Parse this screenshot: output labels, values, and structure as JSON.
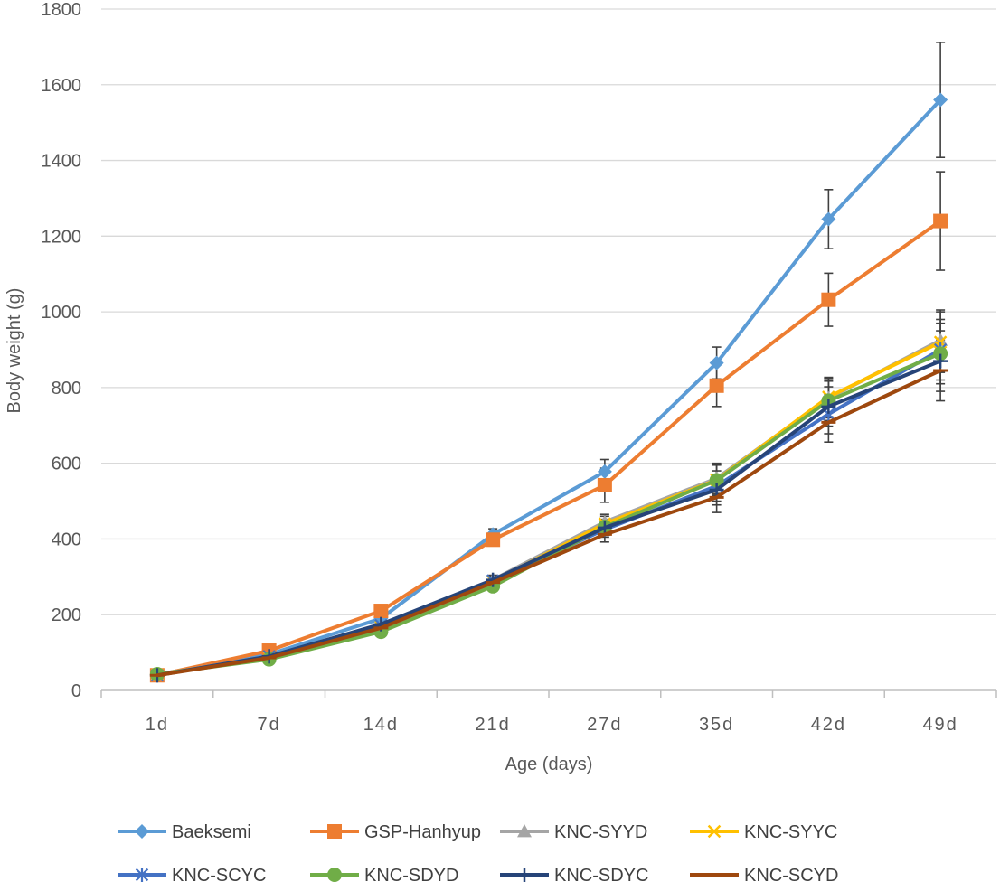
{
  "chart_data": {
    "type": "line",
    "title": "",
    "xlabel": "Age (days)",
    "ylabel": "Body weight (g)",
    "categories": [
      "1d",
      "7d",
      "14d",
      "21d",
      "27d",
      "35d",
      "42d",
      "49d"
    ],
    "ylim": [
      0,
      1800
    ],
    "yticks": [
      0,
      200,
      400,
      600,
      800,
      1000,
      1200,
      1400,
      1600,
      1800
    ],
    "grid": "horizontal",
    "error_bars": true,
    "legend_position": "bottom",
    "series": [
      {
        "name": "Baeksemi",
        "color": "#5B9BD5",
        "marker": "diamond",
        "values": [
          42,
          95,
          190,
          412,
          578,
          865,
          1245,
          1560
        ],
        "errors": [
          5,
          8,
          12,
          15,
          32,
          42,
          78,
          152
        ]
      },
      {
        "name": "GSP-Hanhyup",
        "color": "#ED7D31",
        "marker": "square",
        "values": [
          40,
          105,
          210,
          398,
          542,
          805,
          1032,
          1240
        ],
        "errors": [
          5,
          8,
          12,
          15,
          45,
          55,
          70,
          130
        ]
      },
      {
        "name": "KNC-SYYD",
        "color": "#A5A5A5",
        "marker": "triangle",
        "values": [
          41,
          90,
          170,
          292,
          445,
          560,
          772,
          925
        ],
        "errors": [
          4,
          7,
          10,
          12,
          20,
          40,
          52,
          80
        ]
      },
      {
        "name": "KNC-SYYC",
        "color": "#FFC000",
        "marker": "x",
        "values": [
          41,
          88,
          168,
          288,
          440,
          556,
          775,
          920
        ],
        "errors": [
          4,
          7,
          10,
          12,
          20,
          40,
          52,
          80
        ]
      },
      {
        "name": "KNC-SCYC",
        "color": "#4472C4",
        "marker": "star",
        "values": [
          40,
          90,
          172,
          290,
          425,
          540,
          730,
          900
        ],
        "errors": [
          4,
          7,
          10,
          12,
          20,
          40,
          52,
          80
        ]
      },
      {
        "name": "KNC-SDYD",
        "color": "#70AD47",
        "marker": "circle",
        "values": [
          43,
          82,
          155,
          275,
          432,
          555,
          765,
          890
        ],
        "errors": [
          4,
          7,
          10,
          12,
          20,
          40,
          52,
          80
        ]
      },
      {
        "name": "KNC-SDYC",
        "color": "#264478",
        "marker": "plus",
        "values": [
          40,
          90,
          175,
          292,
          430,
          530,
          750,
          870
        ],
        "errors": [
          4,
          7,
          10,
          12,
          20,
          40,
          52,
          80
        ]
      },
      {
        "name": "KNC-SCYD",
        "color": "#9E480E",
        "marker": "dash",
        "values": [
          40,
          86,
          165,
          285,
          412,
          510,
          708,
          845
        ],
        "errors": [
          4,
          7,
          10,
          12,
          20,
          40,
          52,
          80
        ]
      }
    ]
  }
}
